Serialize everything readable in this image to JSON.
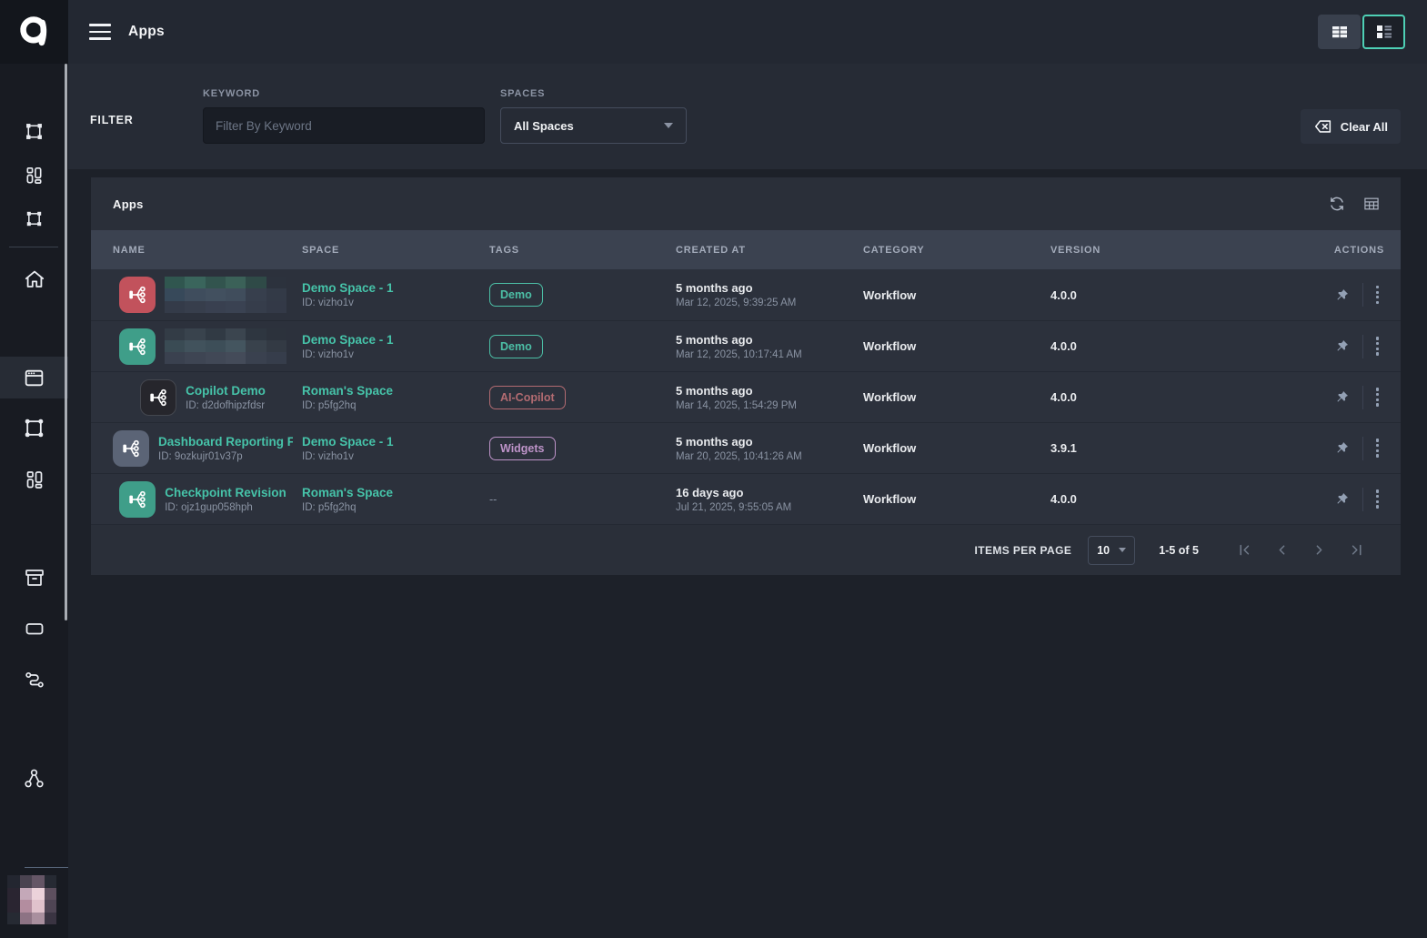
{
  "topbar": {
    "title": "Apps"
  },
  "filter": {
    "section_label": "FILTER",
    "keyword_label": "KEYWORD",
    "keyword_placeholder": "Filter By Keyword",
    "keyword_value": "",
    "spaces_label": "SPACES",
    "spaces_value": "All Spaces",
    "clear_all_label": "Clear All"
  },
  "panel": {
    "title": "Apps"
  },
  "table": {
    "columns": [
      "NAME",
      "SPACE",
      "TAGS",
      "CREATED AT",
      "CATEGORY",
      "VERSION",
      "ACTIONS"
    ],
    "rows": [
      {
        "name": "",
        "redacted": true,
        "app_id": "",
        "icon_color": "#c2525c",
        "icon_border": "",
        "space": "Demo Space - 1",
        "space_id": "ID: vizho1v",
        "tag": "Demo",
        "tag_color": "#4cbfa6",
        "created_relative": "5 months ago",
        "created_exact": "Mar 12, 2025, 9:39:25 AM",
        "category": "Workflow",
        "version": "4.0.0"
      },
      {
        "name": "",
        "redacted": true,
        "app_id": "",
        "icon_color": "#3f9e89",
        "icon_border": "",
        "space": "Demo Space - 1",
        "space_id": "ID: vizho1v",
        "tag": "Demo",
        "tag_color": "#4cbfa6",
        "created_relative": "5 months ago",
        "created_exact": "Mar 12, 2025, 10:17:41 AM",
        "category": "Workflow",
        "version": "4.0.0"
      },
      {
        "name": "Copilot Demo",
        "redacted": false,
        "app_id": "ID: d2dofhipzfdsr",
        "icon_color": "#26262c",
        "icon_border": "#44474f",
        "space": "Roman's Space",
        "space_id": "ID: p5fg2hq",
        "tag": "AI-Copilot",
        "tag_color": "#b26b71",
        "created_relative": "5 months ago",
        "created_exact": "Mar 14, 2025, 1:54:29 PM",
        "category": "Workflow",
        "version": "4.0.0"
      },
      {
        "name": "Dashboard Reporting Flo",
        "redacted": false,
        "app_id": "ID: 9ozkujr01v37p",
        "icon_color": "#5b6476",
        "icon_border": "",
        "space": "Demo Space - 1",
        "space_id": "ID: vizho1v",
        "tag": "Widgets",
        "tag_color": "#bd93c8",
        "created_relative": "5 months ago",
        "created_exact": "Mar 20, 2025, 10:41:26 AM",
        "category": "Workflow",
        "version": "3.9.1"
      },
      {
        "name": "Checkpoint Revision",
        "redacted": false,
        "app_id": "ID: ojz1gup058hph",
        "icon_color": "#3f9e89",
        "icon_border": "",
        "space": "Roman's Space",
        "space_id": "ID: p5fg2hq",
        "tag": "--",
        "tag_color": "",
        "created_relative": "16 days ago",
        "created_exact": "Jul 21, 2025, 9:55:05 AM",
        "category": "Workflow",
        "version": "4.0.0"
      }
    ]
  },
  "pagination": {
    "items_per_page_label": "ITEMS PER PAGE",
    "items_per_page_value": "10",
    "range_label": "1-5 of 5"
  },
  "colors": {
    "accent_teal": "#4ed0b5",
    "tag_demo": "#4cbfa6",
    "tag_ai_copilot": "#b26b71",
    "tag_widgets": "#bd93c8"
  }
}
